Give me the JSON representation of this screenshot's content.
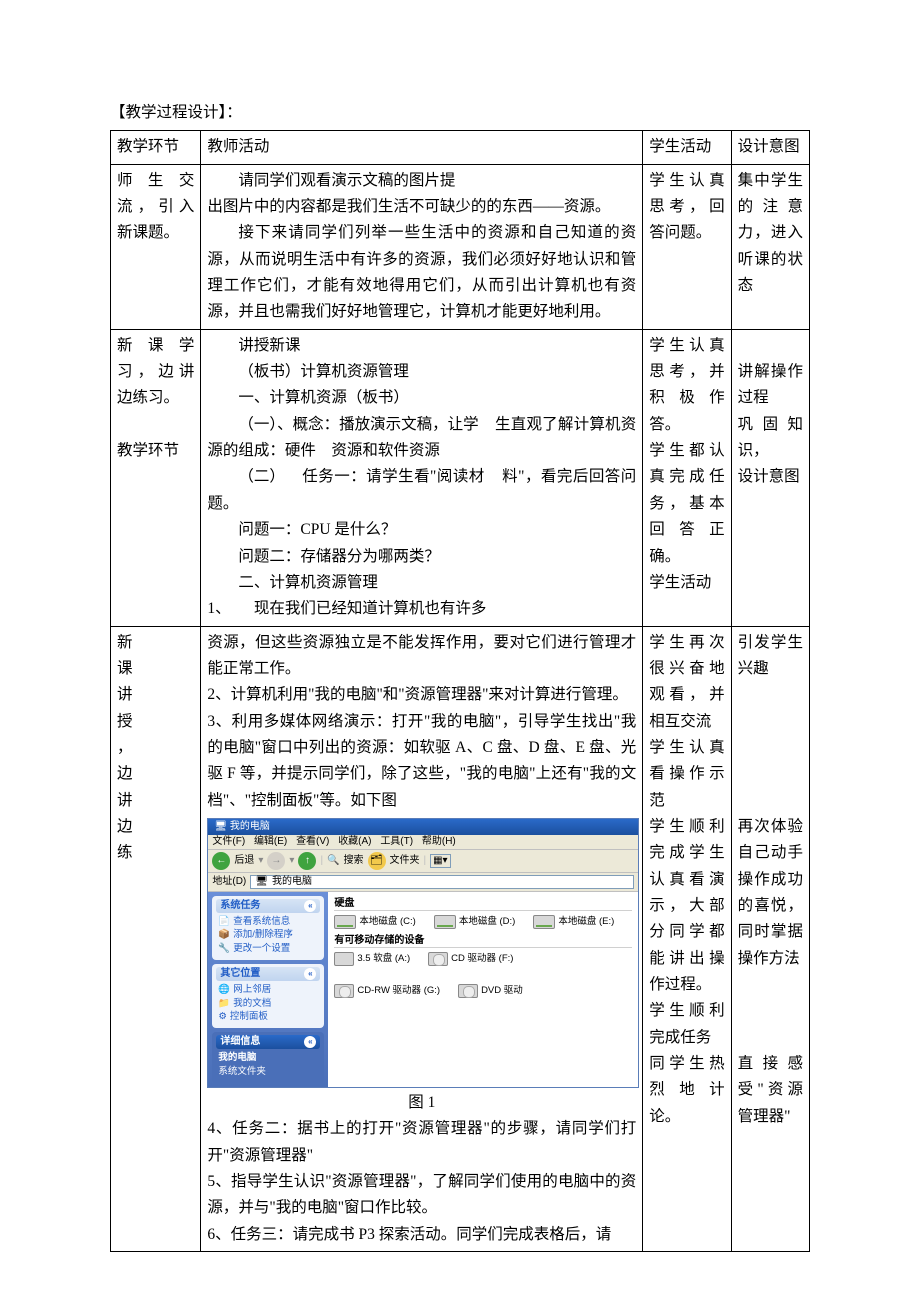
{
  "heading": "【教学过程设计】：",
  "header": {
    "c1": "教学环节",
    "c2": "教师活动",
    "c3": "学生活动",
    "c4": "设计意图"
  },
  "row1": {
    "c1": "师生交流，引入新课题。",
    "c2_p1": "请同学们观看演示文稿的图片提",
    "c2_p2": "出图片中的内容都是我们生活不可缺少的的东西——资源。",
    "c2_p3": "接下来请同学们列举一些生活中的资源和自己知道的资源，从而说明生活中有许多的资源，我们必须好好地认识和管理工作它们，才能有效地得用它们，从而引出计算机也有资源，并且也需我们好好地管理它，计算机才能更好地利用。",
    "c3": "学生认真思考，回答问题。",
    "c4": "集中学生的注意力，进入听课的状态"
  },
  "row2": {
    "c1_a": "新课学习，边讲边练习。",
    "c1_b": "教学环节",
    "c2_l1": "讲授新课",
    "c2_l2": "（板书）计算机资源管理",
    "c2_l3": "一、计算机资源（板书）",
    "c2_l4a": "（一）、概念：播放演示文稿，让学",
    "c2_l4b": "生直观了解计算机资源的组成：硬件",
    "c2_l4c": "资源和软件资源",
    "c2_l5a": "（二）",
    "c2_l5b": "任务一：请学生看\"阅读材",
    "c2_l5c": "料\"，看完后回答问题。",
    "c2_l6": "问题一：CPU 是什么？",
    "c2_l7": "问题二：存储器分为哪两类？",
    "c2_l8": "二、计算机资源管理",
    "c2_l9a": "1、",
    "c2_l9b": "现在我们已经知道计算机也有许多",
    "c3_a": "学生认真思考，并积极作答。",
    "c3_b": "学生都认真完成任务，基本回答正确。",
    "c3_c": "学生活动",
    "c4_a": "讲解操作过程",
    "c4_b": "巩固知识，",
    "c4_c": "设计意图"
  },
  "row3": {
    "c1": "新\n课\n讲\n授\n，\n边\n讲\n边\n练",
    "c2_p1": "资源，但这些资源独立是不能发挥作用，要对它们进行管理才能正常工作。",
    "c2_p2": "2、计算机利用\"我的电脑\"和\"资源管理器\"来对计算进行管理。",
    "c2_p3": "3、利用多媒体网络演示：打开\"我的电脑\"，引导学生找出\"我的电脑\"窗口中列出的资源：如软驱 A、C 盘、D 盘、E 盘、光驱 F 等，并提示同学们，除了这些，\"我的电脑\"上还有\"我的文档\"、\"控制面板\"等。如下图",
    "c2_fig_caption": "图 1",
    "c2_p4": "4、任务二：据书上的打开\"资源管理器\"的步骤，请同学们打开\"资源管理器\"",
    "c2_p5": "5、指导学生认识\"资源管理器\"，了解同学们使用的电脑中的资源，并与\"我的电脑\"窗口作比较。",
    "c2_p6": "6、任务三：请完成书 P3 探索活动。同学们完成表格后，请",
    "c3_a": "学生再次很兴奋地观看，并相互交流",
    "c3_b": "学生认真看操作示范",
    "c3_c": "学生顺利完成学生认真看演示，大部分同学都能讲出操作过程。",
    "c3_d": "学生顺利完成任务",
    "c3_e": "同学生热烈地计论。",
    "c4_a": "引发学生兴趣",
    "c4_b": "再次体验自己动手操作成功的喜悦，同时掌据操作方法",
    "c4_c": "直接感受\"资源管理器\""
  },
  "screenshot": {
    "title": "我的电脑",
    "menu": {
      "file": "文件(F)",
      "edit": "编辑(E)",
      "view": "查看(V)",
      "fav": "收藏(A)",
      "tools": "工具(T)",
      "help": "帮助(H)"
    },
    "toolbar": {
      "back": "后退",
      "search": "搜索",
      "folders": "文件夹"
    },
    "addr_label": "地址(D)",
    "addr_val": "我的电脑",
    "side": {
      "p1": {
        "h": "系统任务",
        "i1": "查看系统信息",
        "i2": "添加/删除程序",
        "i3": "更改一个设置"
      },
      "p2": {
        "h": "其它位置",
        "i1": "网上邻居",
        "i2": "我的文档",
        "i3": "控制面板"
      },
      "p3": {
        "h": "详细信息",
        "i1": "我的电脑",
        "i2": "系统文件夹"
      }
    },
    "content": {
      "s1": "硬盘",
      "d_c": "本地磁盘 (C:)",
      "d_d": "本地磁盘 (D:)",
      "d_e": "本地磁盘 (E:)",
      "s2": "有可移动存储的设备",
      "d_a": "3.5 软盘 (A:)",
      "d_f": "CD 驱动器 (F:)",
      "d_g": "CD-RW 驱动器 (G:)",
      "d_h": "DVD 驱动"
    }
  }
}
